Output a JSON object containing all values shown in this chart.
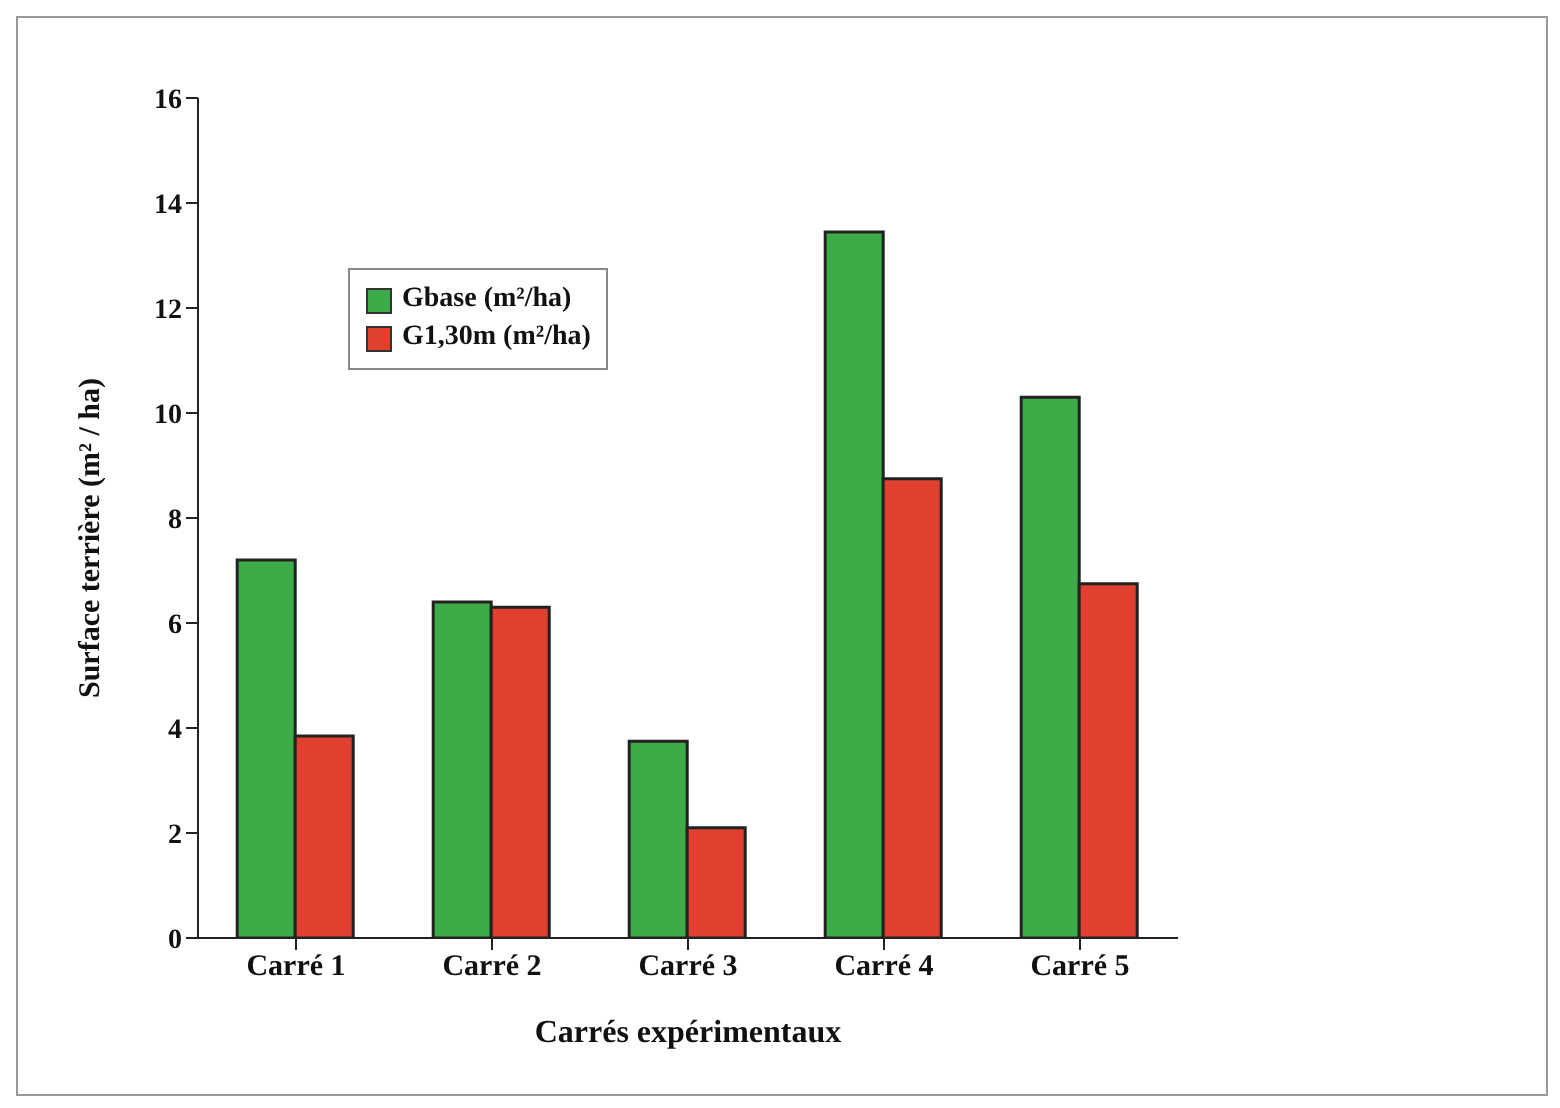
{
  "chart_data": {
    "type": "bar",
    "xlabel": "Carrés expérimentaux",
    "ylabel": "Surface terrière (m² / ha)",
    "categories": [
      "Carré 1",
      "Carré 2",
      "Carré 3",
      "Carré 4",
      "Carré 5"
    ],
    "series": [
      {
        "name": "Gbase (m²/ha)",
        "color": "#3cab48",
        "values": [
          7.2,
          6.4,
          3.75,
          13.45,
          10.3
        ]
      },
      {
        "name": "G1,30m (m²/ha)",
        "color": "#e0402e",
        "values": [
          3.85,
          6.3,
          2.1,
          8.75,
          6.75
        ]
      }
    ],
    "ylim": [
      0,
      16
    ],
    "yticks": [
      0,
      2,
      4,
      6,
      8,
      10,
      12,
      14,
      16
    ],
    "grid": false,
    "legend": "top left"
  }
}
